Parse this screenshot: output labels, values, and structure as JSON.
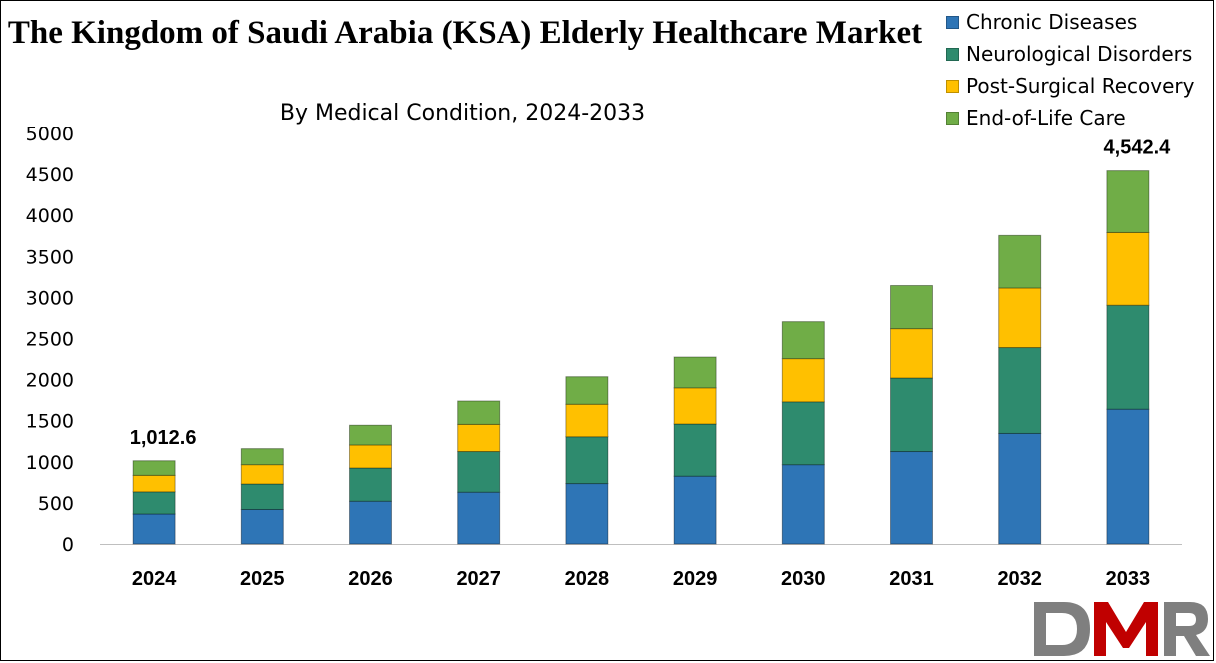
{
  "chart_data": {
    "type": "bar",
    "stacked": true,
    "title": "The Kingdom of Saudi Arabia (KSA) Elderly Healthcare Market",
    "subtitle": "By Medical Condition, 2024-2033",
    "categories": [
      "2024",
      "2025",
      "2026",
      "2027",
      "2028",
      "2029",
      "2030",
      "2031",
      "2032",
      "2033"
    ],
    "series": [
      {
        "name": "Chronic Diseases",
        "color": "#2E75B6",
        "values": [
          365,
          420,
          520,
          630,
          735,
          825,
          965,
          1125,
          1345,
          1640
        ]
      },
      {
        "name": "Neurological Disorders",
        "color": "#2E8B6E",
        "values": [
          270,
          310,
          405,
          495,
          570,
          635,
          765,
          895,
          1045,
          1265
        ]
      },
      {
        "name": "Post-Surgical Recovery",
        "color": "#FFC000",
        "values": [
          200,
          235,
          280,
          330,
          395,
          440,
          525,
          600,
          725,
          885
        ]
      },
      {
        "name": "End-of-Life Care",
        "color": "#70AD47",
        "values": [
          177.6,
          195,
          240,
          285,
          335,
          375,
          450,
          525,
          640,
          752.4
        ]
      }
    ],
    "yticks": [
      "0",
      "500",
      "1000",
      "1500",
      "2000",
      "2500",
      "3000",
      "3500",
      "4000",
      "4500",
      "5000"
    ],
    "ylim": [
      0,
      5000
    ],
    "annotations": [
      {
        "category": "2024",
        "text": "1,012.6"
      },
      {
        "category": "2033",
        "text": "4,542.4"
      }
    ],
    "legend_position": "top-right",
    "grid": false
  },
  "logo": {
    "text": "DMR",
    "colors": [
      "#7F7F7F",
      "#C00000"
    ]
  }
}
